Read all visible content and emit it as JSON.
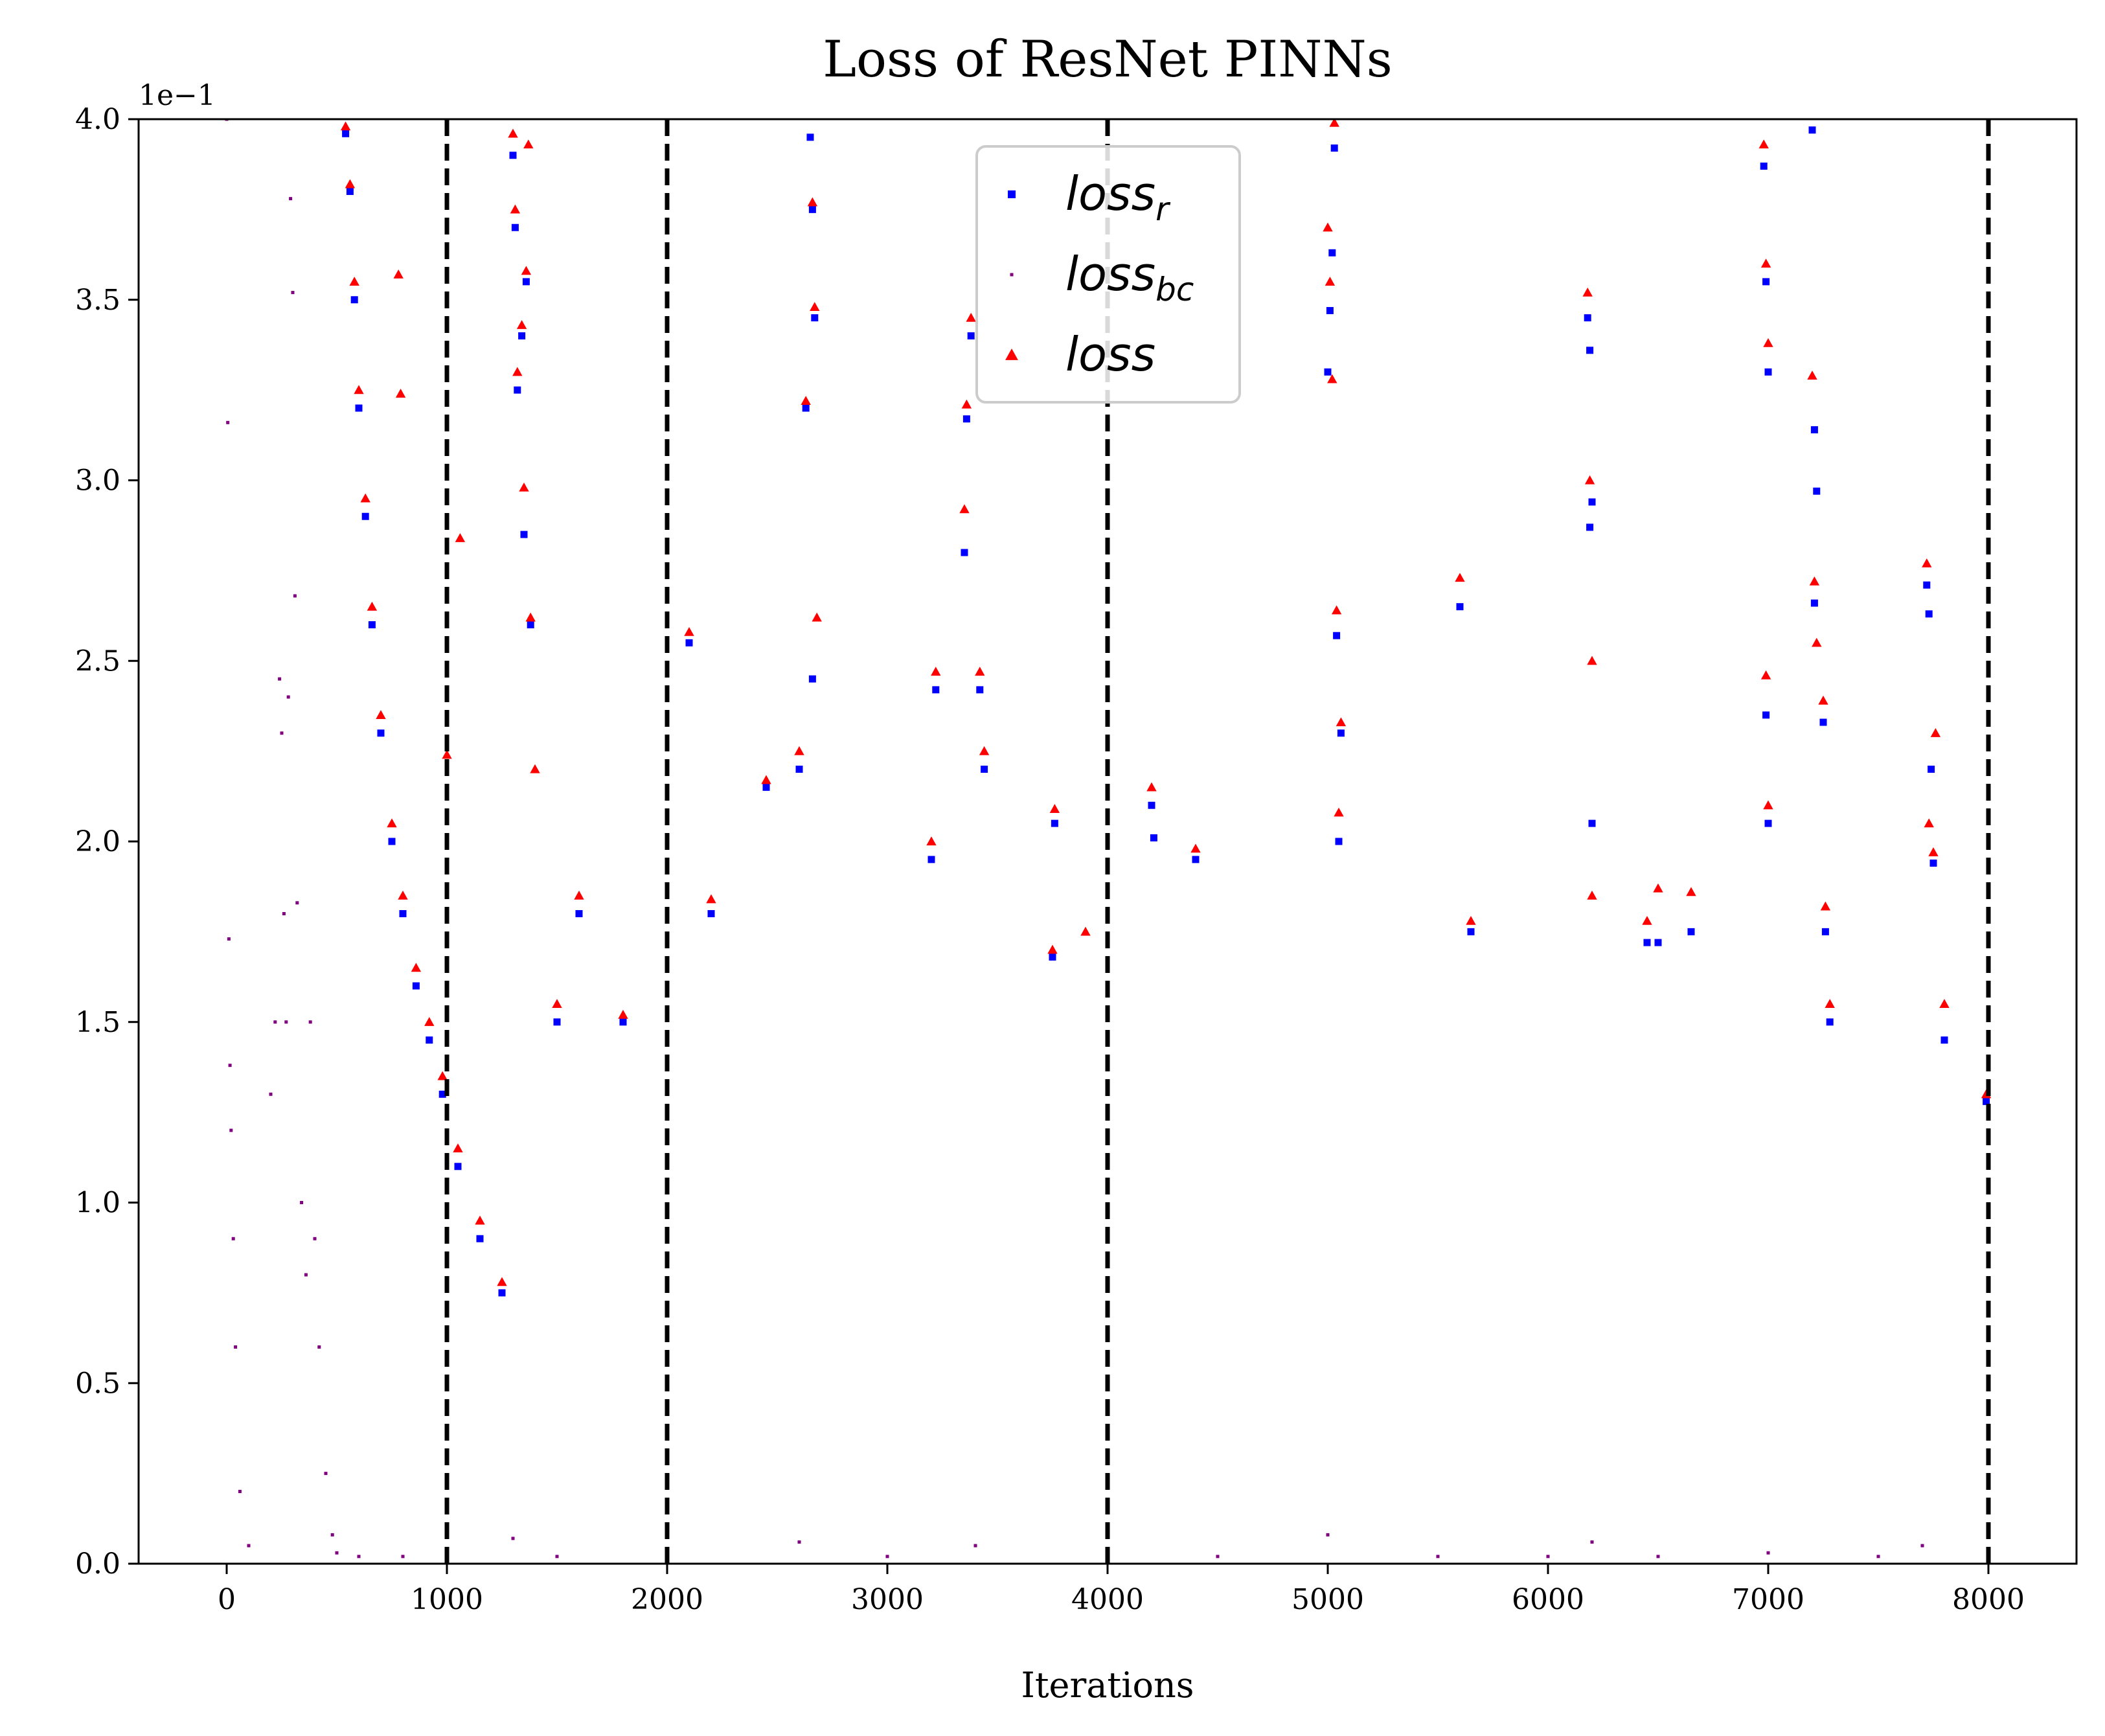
{
  "chart_data": {
    "type": "scatter",
    "title": "Loss of ResNet PINNs",
    "xlabel": "Iterations",
    "ylabel": "",
    "y_scale_label": "1e−1",
    "xlim": [
      -400,
      8400
    ],
    "ylim": [
      0,
      4.0
    ],
    "xticks": [
      0,
      1000,
      2000,
      3000,
      4000,
      5000,
      6000,
      7000,
      8000
    ],
    "xtick_labels": [
      "0",
      "1000",
      "2000",
      "3000",
      "4000",
      "5000",
      "6000",
      "7000",
      "8000"
    ],
    "yticks": [
      0,
      0.5,
      1.0,
      1.5,
      2.0,
      2.5,
      3.0,
      3.5,
      4.0
    ],
    "ytick_labels": [
      "0.0",
      "0.5",
      "1.0",
      "1.5",
      "2.0",
      "2.5",
      "3.0",
      "3.5",
      "4.0"
    ],
    "vlines": [
      1000,
      2000,
      4000,
      8000
    ],
    "grid": false,
    "legend_position": "top-center",
    "series": [
      {
        "name": "loss_r",
        "label_base": "loss",
        "label_sub": "r",
        "marker": "square",
        "color": "#0000ff",
        "points": [
          [
            540,
            3.96
          ],
          [
            560,
            3.8
          ],
          [
            580,
            3.5
          ],
          [
            600,
            3.2
          ],
          [
            630,
            2.9
          ],
          [
            660,
            2.6
          ],
          [
            700,
            2.3
          ],
          [
            750,
            2.0
          ],
          [
            800,
            1.8
          ],
          [
            860,
            1.6
          ],
          [
            920,
            1.45
          ],
          [
            980,
            1.3
          ],
          [
            1050,
            1.1
          ],
          [
            1150,
            0.9
          ],
          [
            1250,
            0.75
          ],
          [
            1300,
            3.9
          ],
          [
            1310,
            3.7
          ],
          [
            1320,
            3.25
          ],
          [
            1340,
            3.4
          ],
          [
            1350,
            2.85
          ],
          [
            1360,
            3.55
          ],
          [
            1380,
            2.6
          ],
          [
            1500,
            1.5
          ],
          [
            1600,
            1.8
          ],
          [
            1800,
            1.5
          ],
          [
            2100,
            2.55
          ],
          [
            2200,
            1.8
          ],
          [
            2450,
            2.15
          ],
          [
            2600,
            2.2
          ],
          [
            2630,
            3.2
          ],
          [
            2650,
            3.95
          ],
          [
            2660,
            3.75
          ],
          [
            2670,
            3.45
          ],
          [
            2660,
            2.45
          ],
          [
            3200,
            1.95
          ],
          [
            3220,
            2.42
          ],
          [
            3350,
            2.8
          ],
          [
            3360,
            3.17
          ],
          [
            3380,
            3.4
          ],
          [
            3420,
            2.42
          ],
          [
            3440,
            2.2
          ],
          [
            3750,
            1.68
          ],
          [
            3760,
            2.05
          ],
          [
            4200,
            2.1
          ],
          [
            4210,
            2.01
          ],
          [
            4400,
            1.95
          ],
          [
            5000,
            3.3
          ],
          [
            5010,
            3.47
          ],
          [
            5020,
            3.63
          ],
          [
            5030,
            3.92
          ],
          [
            5040,
            2.57
          ],
          [
            5050,
            2.0
          ],
          [
            5060,
            2.3
          ],
          [
            5600,
            2.65
          ],
          [
            5650,
            1.75
          ],
          [
            6180,
            3.45
          ],
          [
            6190,
            3.36
          ],
          [
            6200,
            2.94
          ],
          [
            6190,
            2.87
          ],
          [
            6200,
            2.05
          ],
          [
            6450,
            1.72
          ],
          [
            6500,
            1.72
          ],
          [
            6650,
            1.75
          ],
          [
            6980,
            3.87
          ],
          [
            6990,
            3.55
          ],
          [
            7000,
            3.3
          ],
          [
            6990,
            2.35
          ],
          [
            7000,
            2.05
          ],
          [
            7200,
            3.97
          ],
          [
            7210,
            3.14
          ],
          [
            7220,
            2.97
          ],
          [
            7210,
            2.66
          ],
          [
            7250,
            2.33
          ],
          [
            7260,
            1.75
          ],
          [
            7280,
            1.5
          ],
          [
            7720,
            2.71
          ],
          [
            7730,
            2.63
          ],
          [
            7740,
            2.2
          ],
          [
            7750,
            1.94
          ],
          [
            7800,
            1.45
          ],
          [
            7990,
            1.28
          ]
        ]
      },
      {
        "name": "loss_bc",
        "label_base": "loss",
        "label_sub": "bc",
        "marker": "point",
        "color": "#800080",
        "points": [
          [
            0,
            4.0
          ],
          [
            5,
            3.16
          ],
          [
            10,
            1.73
          ],
          [
            15,
            1.38
          ],
          [
            20,
            1.2
          ],
          [
            30,
            0.9
          ],
          [
            40,
            0.6
          ],
          [
            60,
            0.2
          ],
          [
            100,
            0.05
          ],
          [
            200,
            1.3
          ],
          [
            220,
            1.5
          ],
          [
            240,
            2.45
          ],
          [
            250,
            2.3
          ],
          [
            260,
            1.8
          ],
          [
            270,
            1.5
          ],
          [
            280,
            2.4
          ],
          [
            290,
            3.78
          ],
          [
            300,
            3.52
          ],
          [
            310,
            2.68
          ],
          [
            320,
            1.83
          ],
          [
            340,
            1.0
          ],
          [
            360,
            0.8
          ],
          [
            380,
            1.5
          ],
          [
            400,
            0.9
          ],
          [
            420,
            0.6
          ],
          [
            450,
            0.25
          ],
          [
            480,
            0.08
          ],
          [
            500,
            0.03
          ],
          [
            600,
            0.02
          ],
          [
            800,
            0.02
          ],
          [
            1000,
            0.02
          ],
          [
            1300,
            0.07
          ],
          [
            1500,
            0.02
          ],
          [
            2000,
            0.02
          ],
          [
            2600,
            0.06
          ],
          [
            3000,
            0.02
          ],
          [
            3400,
            0.05
          ],
          [
            4000,
            0.03
          ],
          [
            4500,
            0.02
          ],
          [
            5000,
            0.08
          ],
          [
            5500,
            0.02
          ],
          [
            6000,
            0.02
          ],
          [
            6200,
            0.06
          ],
          [
            6500,
            0.02
          ],
          [
            7000,
            0.03
          ],
          [
            7500,
            0.02
          ],
          [
            7700,
            0.05
          ],
          [
            8000,
            0.03
          ]
        ]
      },
      {
        "name": "loss",
        "label_base": "loss",
        "label_sub": "",
        "marker": "triangle",
        "color": "#ff0000",
        "points": [
          [
            540,
            3.98
          ],
          [
            560,
            3.82
          ],
          [
            580,
            3.55
          ],
          [
            600,
            3.25
          ],
          [
            630,
            2.95
          ],
          [
            660,
            2.65
          ],
          [
            700,
            2.35
          ],
          [
            750,
            2.05
          ],
          [
            780,
            3.57
          ],
          [
            790,
            3.24
          ],
          [
            800,
            1.85
          ],
          [
            860,
            1.65
          ],
          [
            920,
            1.5
          ],
          [
            980,
            1.35
          ],
          [
            1000,
            2.24
          ],
          [
            1050,
            1.15
          ],
          [
            1060,
            2.84
          ],
          [
            1150,
            0.95
          ],
          [
            1250,
            0.78
          ],
          [
            1300,
            3.96
          ],
          [
            1310,
            3.75
          ],
          [
            1320,
            3.3
          ],
          [
            1340,
            3.43
          ],
          [
            1350,
            2.98
          ],
          [
            1360,
            3.58
          ],
          [
            1370,
            3.93
          ],
          [
            1380,
            2.62
          ],
          [
            1400,
            2.2
          ],
          [
            1500,
            1.55
          ],
          [
            1600,
            1.85
          ],
          [
            1800,
            1.52
          ],
          [
            2100,
            2.58
          ],
          [
            2200,
            1.84
          ],
          [
            2450,
            2.17
          ],
          [
            2600,
            2.25
          ],
          [
            2630,
            3.22
          ],
          [
            2660,
            3.77
          ],
          [
            2670,
            3.48
          ],
          [
            2680,
            2.62
          ],
          [
            3200,
            2.0
          ],
          [
            3220,
            2.47
          ],
          [
            3350,
            2.92
          ],
          [
            3360,
            3.21
          ],
          [
            3380,
            3.45
          ],
          [
            3420,
            2.47
          ],
          [
            3440,
            2.25
          ],
          [
            3750,
            1.7
          ],
          [
            3760,
            2.09
          ],
          [
            3900,
            1.75
          ],
          [
            4200,
            2.15
          ],
          [
            4400,
            1.98
          ],
          [
            5000,
            3.7
          ],
          [
            5010,
            3.55
          ],
          [
            5020,
            3.28
          ],
          [
            5030,
            3.99
          ],
          [
            5040,
            2.64
          ],
          [
            5050,
            2.08
          ],
          [
            5060,
            2.33
          ],
          [
            5600,
            2.73
          ],
          [
            5650,
            1.78
          ],
          [
            6180,
            3.52
          ],
          [
            6190,
            3.0
          ],
          [
            6200,
            2.5
          ],
          [
            6200,
            1.85
          ],
          [
            6450,
            1.78
          ],
          [
            6500,
            1.87
          ],
          [
            6650,
            1.86
          ],
          [
            6980,
            3.93
          ],
          [
            6990,
            3.6
          ],
          [
            7000,
            3.38
          ],
          [
            6990,
            2.46
          ],
          [
            7000,
            2.1
          ],
          [
            7200,
            3.29
          ],
          [
            7210,
            2.72
          ],
          [
            7220,
            2.55
          ],
          [
            7250,
            2.39
          ],
          [
            7260,
            1.82
          ],
          [
            7280,
            1.55
          ],
          [
            7720,
            2.77
          ],
          [
            7730,
            2.05
          ],
          [
            7750,
            1.97
          ],
          [
            7760,
            2.3
          ],
          [
            7800,
            1.55
          ],
          [
            7990,
            1.3
          ]
        ]
      }
    ]
  }
}
